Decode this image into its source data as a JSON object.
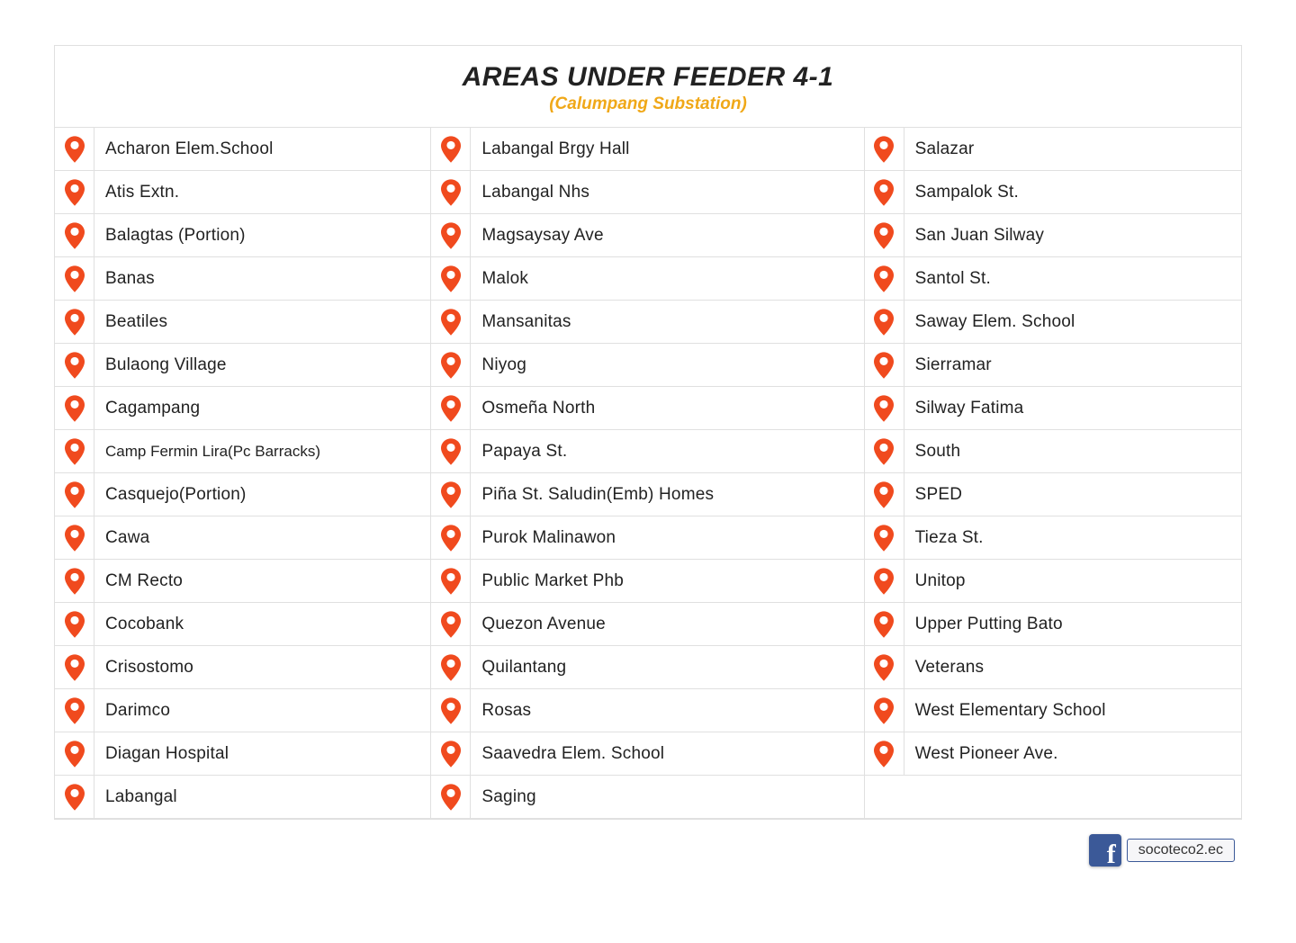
{
  "header": {
    "title": "AREAS UNDER FEEDER 4-1",
    "subtitle": "(Calumpang Substation)"
  },
  "colors": {
    "pin": "#f04a1e",
    "title": "#222222",
    "subtitle": "#f0a818",
    "border": "#e0e0e0",
    "fb": "#3b5998"
  },
  "rows": [
    [
      "Acharon Elem.School",
      "Labangal Brgy Hall",
      "Salazar"
    ],
    [
      "Atis Extn.",
      "Labangal Nhs",
      "Sampalok St."
    ],
    [
      "Balagtas (Portion)",
      "Magsaysay Ave",
      "San Juan Silway"
    ],
    [
      "Banas",
      "Malok",
      "Santol St."
    ],
    [
      "Beatiles",
      "Mansanitas",
      "Saway Elem. School"
    ],
    [
      "Bulaong Village",
      "Niyog",
      "Sierramar"
    ],
    [
      "Cagampang",
      "Osmeña North",
      "Silway Fatima"
    ],
    [
      "Camp Fermin Lira(Pc Barracks)",
      "Papaya St.",
      "South"
    ],
    [
      "Casquejo(Portion)",
      "Piña St. Saludin(Emb) Homes",
      "SPED"
    ],
    [
      "Cawa",
      "Purok Malinawon",
      "Tieza St."
    ],
    [
      "CM Recto",
      "Public Market Phb",
      "Unitop"
    ],
    [
      "Cocobank",
      "Quezon Avenue",
      "Upper Putting Bato"
    ],
    [
      "Crisostomo",
      "Quilantang",
      "Veterans"
    ],
    [
      "Darimco",
      "Rosas",
      "West Elementary School"
    ],
    [
      "Diagan Hospital",
      "Saavedra Elem. School",
      "West Pioneer Ave."
    ],
    [
      "Labangal",
      "Saging",
      ""
    ]
  ],
  "footer": {
    "link_text": "socoteco2.ec"
  }
}
